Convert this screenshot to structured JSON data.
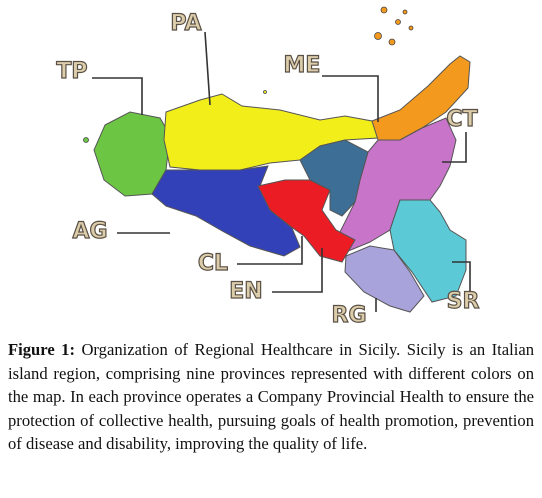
{
  "map": {
    "provinces": [
      {
        "label": "TP",
        "color": "#6cc644"
      },
      {
        "label": "PA",
        "color": "#f2ee1a"
      },
      {
        "label": "ME",
        "color": "#f39a1e"
      },
      {
        "label": "CT",
        "color": "#c774c9"
      },
      {
        "label": "AG",
        "color": "#3341b8"
      },
      {
        "label": "CL",
        "color": "#ec1c24"
      },
      {
        "label": "EN",
        "color": "#3d6e96"
      },
      {
        "label": "RG",
        "color": "#a9a3db"
      },
      {
        "label": "SR",
        "color": "#5cc9d6"
      }
    ]
  },
  "caption": {
    "label": "Figure 1:",
    "text": "Organization of Regional Healthcare in Sicily. Sicily is an Italian island region, comprising nine provinces represented with different colors on the map. In each province operates a Company Provincial Health to ensure the protection of collective health, pursuing goals of health promotion, prevention of disease and disability, improving the quality of life."
  }
}
